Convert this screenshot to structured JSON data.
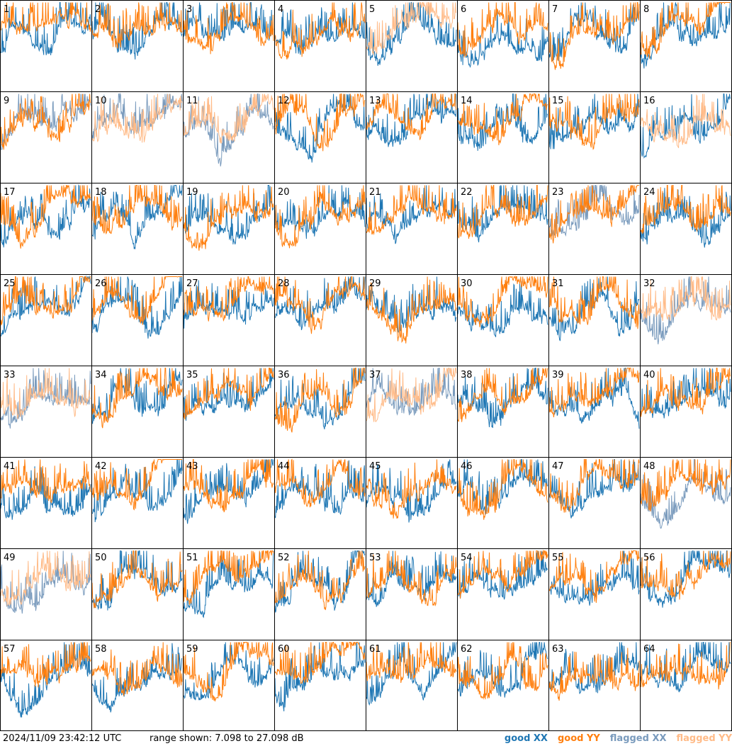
{
  "chart_data": {
    "type": "line",
    "layout": {
      "rows": 8,
      "cols": 8
    },
    "panels": [
      "1",
      "2",
      "3",
      "4",
      "5",
      "6",
      "7",
      "8",
      "9",
      "10",
      "11",
      "12",
      "13",
      "14",
      "15",
      "16",
      "17",
      "18",
      "19",
      "20",
      "21",
      "22",
      "23",
      "24",
      "25",
      "26",
      "27",
      "28",
      "29",
      "30",
      "31",
      "32",
      "33",
      "34",
      "35",
      "36",
      "37",
      "38",
      "39",
      "40",
      "41",
      "42",
      "43",
      "44",
      "45",
      "46",
      "47",
      "48",
      "49",
      "50",
      "51",
      "52",
      "53",
      "54",
      "55",
      "56",
      "57",
      "58",
      "59",
      "60",
      "61",
      "62",
      "63",
      "64"
    ],
    "ylim": [
      7.098,
      27.098
    ],
    "yunit": "dB",
    "flagged_xx": [
      "9",
      "10",
      "11",
      "23",
      "32",
      "33",
      "37",
      "48",
      "49"
    ],
    "flagged_yy": [
      "5",
      "10",
      "11",
      "16",
      "32",
      "33",
      "37",
      "49"
    ],
    "series": [
      {
        "name": "good XX",
        "color": "#1f77b4"
      },
      {
        "name": "good YY",
        "color": "#ff7f0e"
      },
      {
        "name": "flagged XX",
        "color": "#7a9bbd"
      },
      {
        "name": "flagged YY",
        "color": "#ffbb88"
      }
    ]
  },
  "footer": {
    "timestamp": "2024/11/09 23:42:12 UTC",
    "range": "range shown: 7.098 to 27.098 dB"
  },
  "legend": {
    "good_xx": "good XX",
    "good_yy": "good YY",
    "flagged_xx": "flagged XX",
    "flagged_yy": "flagged YY"
  },
  "colors": {
    "good_xx": "#1f77b4",
    "good_yy": "#ff7f0e",
    "flagged_xx": "#7a9bbd",
    "flagged_yy": "#ffbb88",
    "border": "#000000"
  }
}
